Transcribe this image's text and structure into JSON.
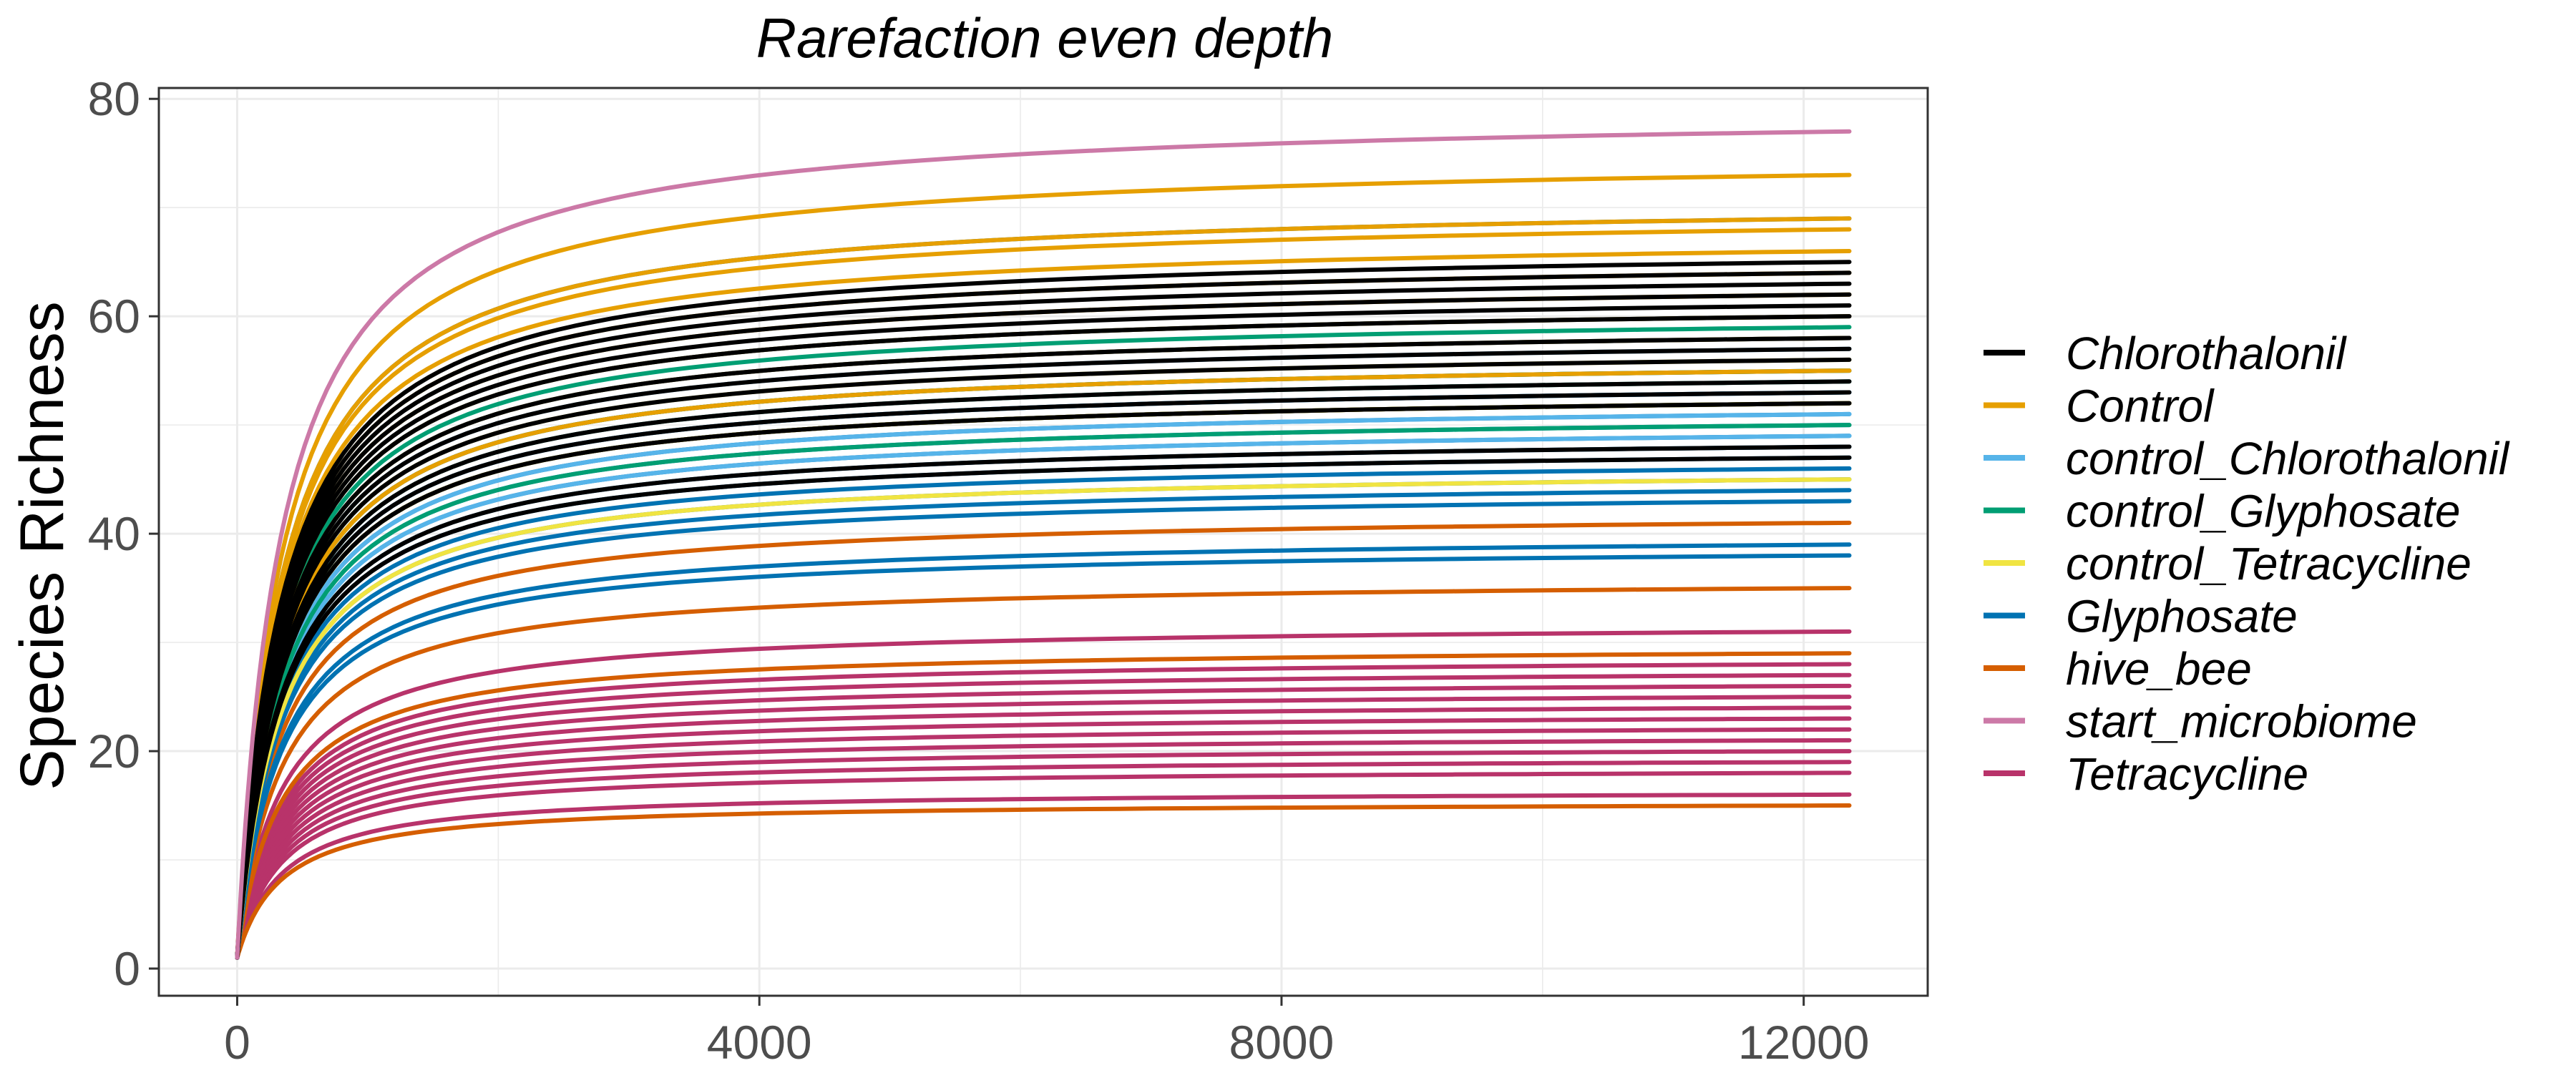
{
  "chart_data": {
    "type": "line",
    "title": "Rarefaction even depth",
    "xlabel": "",
    "ylabel": "Species Richness",
    "xlim": [
      -600,
      12950
    ],
    "ylim": [
      -2.5,
      81
    ],
    "x_ticks": [
      0,
      4000,
      8000,
      12000
    ],
    "y_ticks": [
      0,
      20,
      40,
      60,
      80
    ],
    "x_max_depth": 12350,
    "grid": true,
    "legend_position": "right",
    "series": [
      {
        "name": "Chlorothalonil",
        "color": "#000000",
        "final_richness": [
          65,
          64,
          63,
          62,
          61,
          60,
          58,
          57,
          56,
          54,
          53,
          52,
          48,
          47
        ]
      },
      {
        "name": "Control",
        "color": "#E69F00",
        "final_richness": [
          73,
          69,
          68,
          66,
          64,
          62,
          60,
          58,
          55,
          52
        ]
      },
      {
        "name": "control_Chlorothalonil",
        "color": "#56B4E9",
        "final_richness": [
          57,
          53,
          51,
          49
        ]
      },
      {
        "name": "control_Glyphosate",
        "color": "#009E73",
        "final_richness": [
          59,
          55,
          54,
          52,
          50
        ]
      },
      {
        "name": "control_Tetracycline",
        "color": "#F0E442",
        "final_richness": [
          56,
          52,
          45
        ]
      },
      {
        "name": "Glyphosate",
        "color": "#0072B2",
        "final_richness": [
          69,
          60,
          58,
          55,
          53,
          51,
          50,
          49,
          48,
          47,
          46,
          45,
          44,
          43,
          39,
          38
        ]
      },
      {
        "name": "hive_bee",
        "color": "#D55E00",
        "final_richness": [
          52,
          41,
          35,
          29,
          15
        ]
      },
      {
        "name": "start_microbiome",
        "color": "#CC79A7",
        "final_richness": [
          77
        ]
      },
      {
        "name": "Tetracycline",
        "color": "#B8336A",
        "final_richness": [
          31,
          28,
          27,
          26,
          25,
          24,
          23,
          22,
          21,
          20,
          19,
          18,
          16
        ]
      }
    ]
  }
}
